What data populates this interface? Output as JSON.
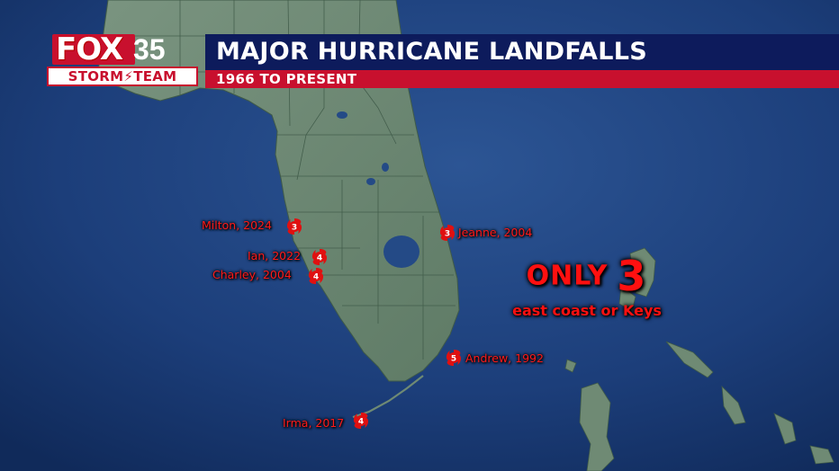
{
  "header": {
    "logo_fox": "FOX",
    "logo_number": "35",
    "logo_team": "STORM⚡TEAM",
    "title": "MAJOR HURRICANE LANDFALLS",
    "subtitle": "1966 TO PRESENT"
  },
  "storms": [
    {
      "name": "Milton, 2024",
      "category": "3"
    },
    {
      "name": "Ian, 2022",
      "category": "4"
    },
    {
      "name": "Charley, 2004",
      "category": "4"
    },
    {
      "name": "Jeanne, 2004",
      "category": "3"
    },
    {
      "name": "Andrew, 1992",
      "category": "5"
    },
    {
      "name": "Irma, 2017",
      "category": "4"
    }
  ],
  "callout": {
    "only": "ONLY",
    "number": "3",
    "sub": "east coast or Keys"
  },
  "colors": {
    "ocean": "#1d3f7a",
    "land": "#6f8a74",
    "accent_red": "#c8102e",
    "title_navy": "#0d1b5c",
    "storm_red": "#ff1a1a"
  }
}
